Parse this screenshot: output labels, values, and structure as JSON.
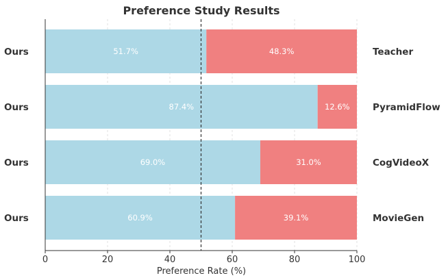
{
  "chart_data": {
    "type": "bar",
    "orientation": "horizontal",
    "stacked": true,
    "title": "Preference Study Results",
    "xlabel": "Preference Rate (%)",
    "xlim": [
      0,
      100
    ],
    "xticks": [
      "0",
      "20",
      "40",
      "60",
      "80",
      "100"
    ],
    "reference_line": 50,
    "grid": true,
    "categories": [
      "Teacher",
      "PyramidFlow",
      "CogVideoX",
      "MovieGen"
    ],
    "left_labels": [
      "Ours",
      "Ours",
      "Ours",
      "Ours"
    ],
    "series": [
      {
        "color": "#add8e6",
        "values": [
          51.7,
          87.4,
          69.0,
          60.9
        ],
        "labels": [
          "51.7%",
          "87.4%",
          "69.0%",
          "60.9%"
        ]
      },
      {
        "color": "#f08080",
        "values": [
          48.3,
          12.6,
          31.0,
          39.1
        ],
        "labels": [
          "48.3%",
          "12.6%",
          "31.0%",
          "39.1%"
        ]
      }
    ]
  }
}
